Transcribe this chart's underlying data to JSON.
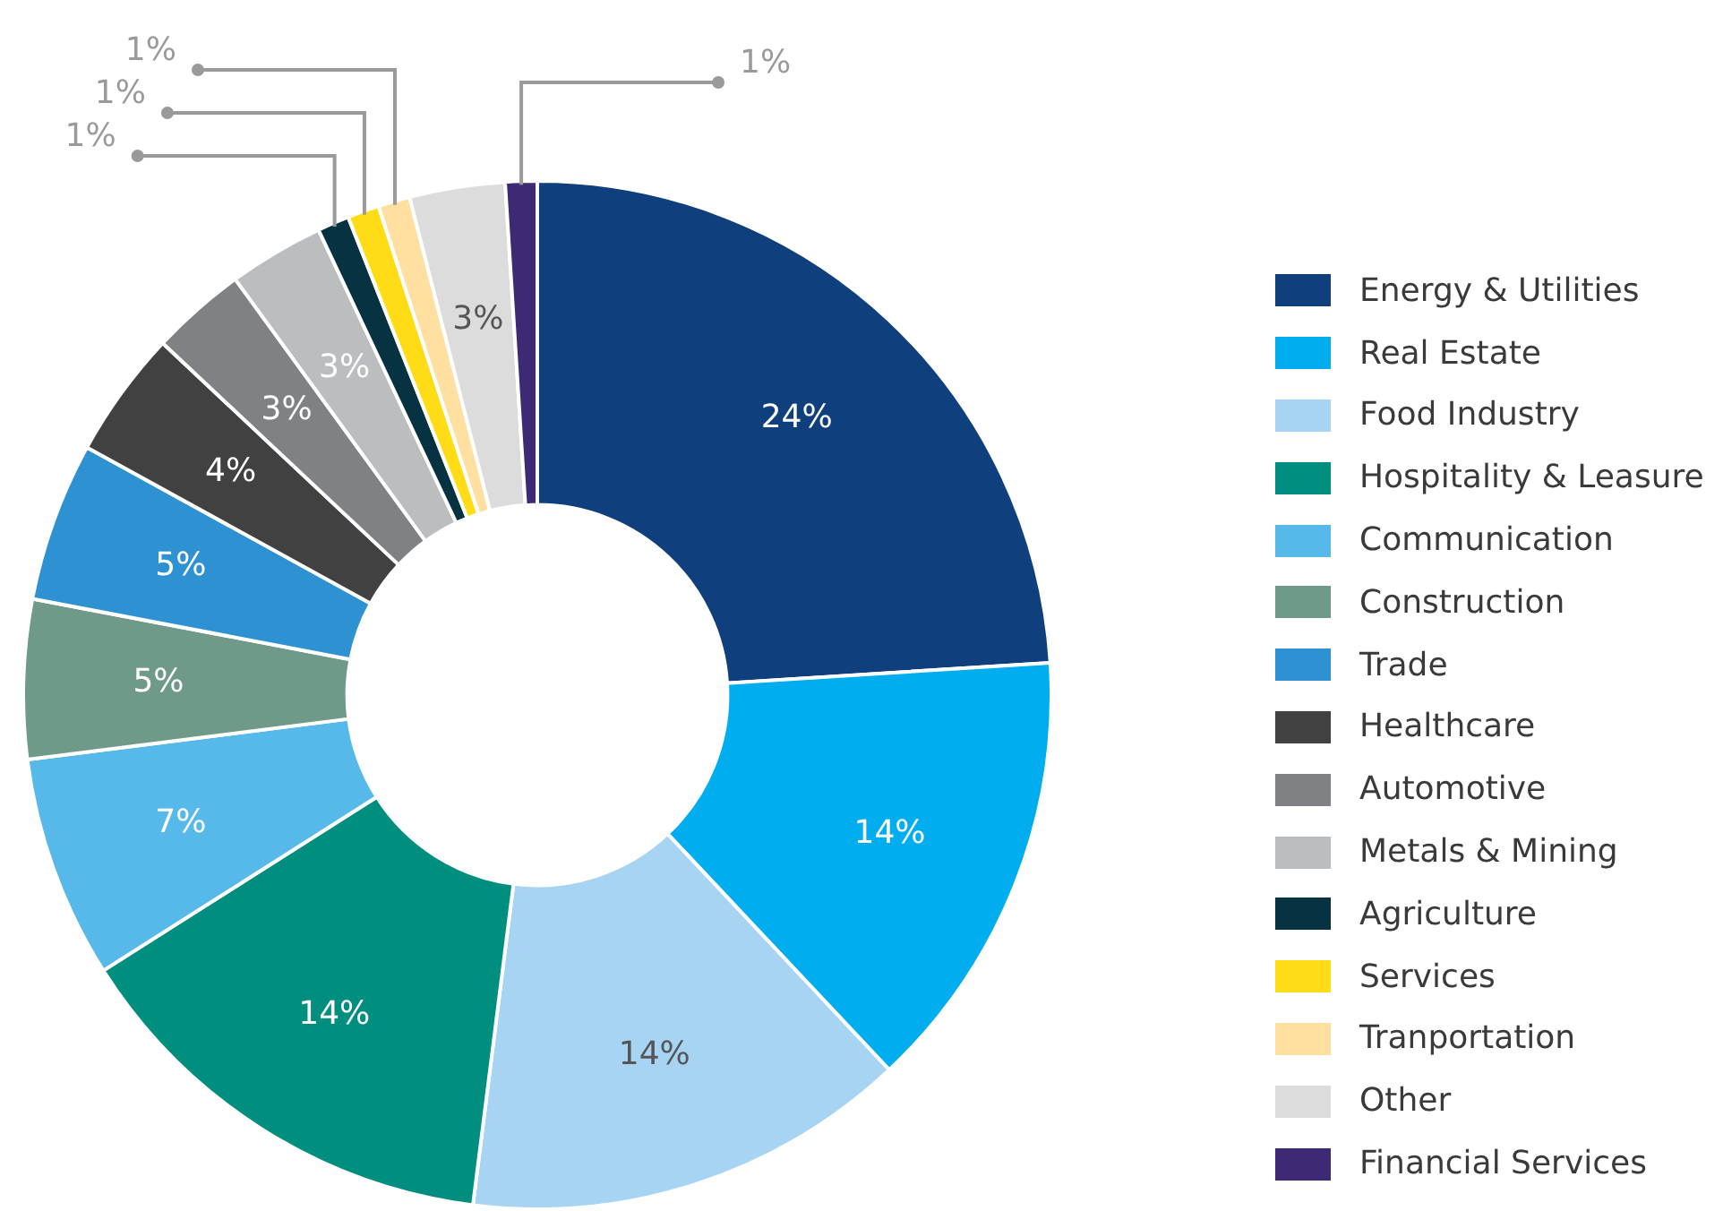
{
  "chart_data": {
    "type": "donut",
    "categories": [
      "Energy & Utilities",
      "Real Estate",
      "Food Industry",
      "Hospitality & Leasure",
      "Communication",
      "Construction",
      "Trade",
      "Healthcare",
      "Automotive",
      "Metals & Mining",
      "Agriculture",
      "Services",
      "Tranportation",
      "Other",
      "Financial Services"
    ],
    "values": [
      24,
      14,
      14,
      14,
      7,
      5,
      5,
      4,
      3,
      3,
      1,
      1,
      1,
      3,
      1
    ],
    "colors": [
      "#0f3f7d",
      "#00adef",
      "#a6d4f2",
      "#008f7e",
      "#56b9ea",
      "#6f9a8a",
      "#2e91d2",
      "#414141",
      "#808184",
      "#bcbdbf",
      "#073241",
      "#ffdc16",
      "#ffe0a0",
      "#dcdcdd",
      "#3e2a74"
    ],
    "value_labels": [
      "24%",
      "14%",
      "14%",
      "14%",
      "7%",
      "5%",
      "5%",
      "4%",
      "3%",
      "3%",
      "1%",
      "1%",
      "1%",
      "3%",
      "1%"
    ],
    "legend": "right"
  }
}
